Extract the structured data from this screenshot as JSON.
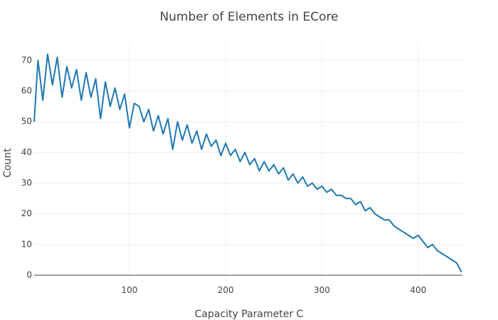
{
  "chart_data": {
    "type": "line",
    "title": "Number of Elements in ECore",
    "x_label": "Capacity Parameter C",
    "y_label": "Count",
    "series": [
      {
        "color": "#1f77b4",
        "x": [
          1,
          5,
          10,
          15,
          20,
          25,
          30,
          35,
          40,
          45,
          50,
          55,
          60,
          65,
          70,
          75,
          80,
          85,
          90,
          95,
          100,
          105,
          110,
          115,
          120,
          125,
          130,
          135,
          140,
          145,
          150,
          155,
          160,
          165,
          170,
          175,
          180,
          185,
          190,
          195,
          200,
          205,
          210,
          215,
          220,
          225,
          230,
          235,
          240,
          245,
          250,
          255,
          260,
          265,
          270,
          275,
          280,
          285,
          290,
          295,
          300,
          305,
          310,
          315,
          320,
          325,
          330,
          335,
          340,
          345,
          350,
          355,
          360,
          365,
          370,
          375,
          380,
          385,
          390,
          395,
          400,
          405,
          410,
          415,
          420,
          425,
          430,
          435,
          440,
          445
        ],
        "values": [
          50,
          70,
          57,
          72,
          62,
          71,
          58,
          68,
          61,
          67,
          57,
          66,
          58,
          64,
          51,
          63,
          55,
          61,
          54,
          59,
          48,
          56,
          55,
          50,
          54,
          47,
          52,
          46,
          51,
          41,
          50,
          44,
          49,
          43,
          47,
          41,
          46,
          42,
          44,
          39,
          43,
          39,
          41,
          37,
          40,
          36,
          38,
          34,
          37,
          34,
          36,
          33,
          35,
          31,
          33,
          30,
          32,
          29,
          30,
          28,
          29,
          27,
          28,
          26,
          26,
          25,
          25,
          23,
          24,
          21,
          22,
          20,
          19,
          18,
          18,
          16,
          15,
          14,
          13,
          12,
          13,
          11,
          9,
          10,
          8,
          7,
          6,
          5,
          4,
          1
        ]
      }
    ],
    "xlim": [
      1,
      446
    ],
    "ylim": [
      -2,
      76
    ],
    "xticks": [
      100,
      200,
      300,
      400
    ],
    "yticks": [
      0,
      10,
      20,
      30,
      40,
      50,
      60,
      70
    ],
    "grid": true
  }
}
